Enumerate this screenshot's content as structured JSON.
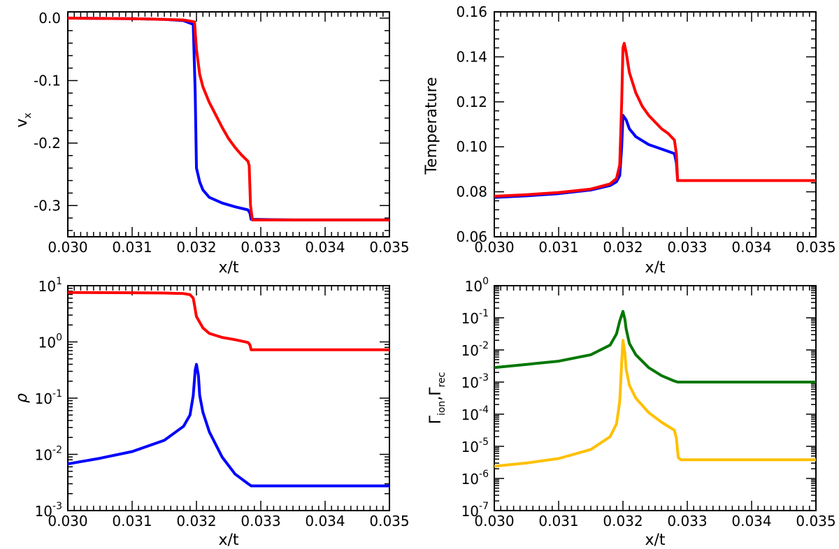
{
  "chart_data": [
    {
      "id": "vx",
      "type": "line",
      "xlabel": "x/t",
      "ylabel": "v",
      "ylabel_sub": "x",
      "xlim": [
        0.03,
        0.035
      ],
      "ylim": [
        -0.35,
        0.01
      ],
      "yscale": "linear",
      "xticks": [
        "0.030",
        "0.031",
        "0.032",
        "0.033",
        "0.034",
        "0.035"
      ],
      "yticks": [
        {
          "v": 0.0,
          "label": "0.0"
        },
        {
          "v": -0.1,
          "label": "-0.1"
        },
        {
          "v": -0.2,
          "label": "-0.2"
        },
        {
          "v": -0.3,
          "label": "-0.3"
        }
      ],
      "series": [
        {
          "name": "blue",
          "color": "#0000ff",
          "points": [
            [
              0.03,
              0.0
            ],
            [
              0.031,
              -0.001
            ],
            [
              0.0315,
              -0.002
            ],
            [
              0.0318,
              -0.004
            ],
            [
              0.03195,
              -0.01
            ],
            [
              0.03198,
              -0.12
            ],
            [
              0.032,
              -0.24
            ],
            [
              0.03205,
              -0.262
            ],
            [
              0.0321,
              -0.275
            ],
            [
              0.0322,
              -0.287
            ],
            [
              0.0324,
              -0.296
            ],
            [
              0.0326,
              -0.302
            ],
            [
              0.0328,
              -0.307
            ],
            [
              0.03283,
              -0.312
            ],
            [
              0.03285,
              -0.322
            ],
            [
              0.0335,
              -0.323
            ],
            [
              0.035,
              -0.323
            ]
          ]
        },
        {
          "name": "red",
          "color": "#ff0000",
          "points": [
            [
              0.03,
              0.0
            ],
            [
              0.031,
              -0.001
            ],
            [
              0.0315,
              -0.002
            ],
            [
              0.0318,
              -0.003
            ],
            [
              0.03197,
              -0.006
            ],
            [
              0.032,
              -0.05
            ],
            [
              0.03205,
              -0.09
            ],
            [
              0.0321,
              -0.11
            ],
            [
              0.0322,
              -0.135
            ],
            [
              0.0323,
              -0.155
            ],
            [
              0.0324,
              -0.175
            ],
            [
              0.0325,
              -0.193
            ],
            [
              0.0326,
              -0.207
            ],
            [
              0.0327,
              -0.219
            ],
            [
              0.0328,
              -0.229
            ],
            [
              0.03282,
              -0.236
            ],
            [
              0.03284,
              -0.3
            ],
            [
              0.03287,
              -0.323
            ],
            [
              0.035,
              -0.323
            ]
          ]
        }
      ]
    },
    {
      "id": "temperature",
      "type": "line",
      "xlabel": "x/t",
      "ylabel": "Temperature",
      "xlim": [
        0.03,
        0.035
      ],
      "ylim": [
        0.06,
        0.16
      ],
      "yscale": "linear",
      "xticks": [
        "0.030",
        "0.031",
        "0.032",
        "0.033",
        "0.034",
        "0.035"
      ],
      "yticks": [
        {
          "v": 0.06,
          "label": "0.06"
        },
        {
          "v": 0.08,
          "label": "0.08"
        },
        {
          "v": 0.1,
          "label": "0.10"
        },
        {
          "v": 0.12,
          "label": "0.12"
        },
        {
          "v": 0.14,
          "label": "0.14"
        },
        {
          "v": 0.16,
          "label": "0.16"
        }
      ],
      "series": [
        {
          "name": "blue",
          "color": "#0000ff",
          "points": [
            [
              0.03,
              0.0775
            ],
            [
              0.0305,
              0.0782
            ],
            [
              0.031,
              0.0792
            ],
            [
              0.0315,
              0.0808
            ],
            [
              0.0318,
              0.0828
            ],
            [
              0.0319,
              0.0845
            ],
            [
              0.03195,
              0.0872
            ],
            [
              0.03198,
              0.1
            ],
            [
              0.032,
              0.114
            ],
            [
              0.03205,
              0.112
            ],
            [
              0.0321,
              0.108
            ],
            [
              0.0322,
              0.1045
            ],
            [
              0.0324,
              0.101
            ],
            [
              0.0326,
              0.099
            ],
            [
              0.0328,
              0.097
            ],
            [
              0.03283,
              0.093
            ],
            [
              0.03285,
              0.085
            ],
            [
              0.035,
              0.085
            ]
          ]
        },
        {
          "name": "red",
          "color": "#ff0000",
          "points": [
            [
              0.03,
              0.078
            ],
            [
              0.0305,
              0.0787
            ],
            [
              0.031,
              0.0797
            ],
            [
              0.0315,
              0.0812
            ],
            [
              0.0318,
              0.0835
            ],
            [
              0.0319,
              0.086
            ],
            [
              0.03195,
              0.092
            ],
            [
              0.03198,
              0.12
            ],
            [
              0.032,
              0.144
            ],
            [
              0.03202,
              0.146
            ],
            [
              0.03205,
              0.142
            ],
            [
              0.0321,
              0.133
            ],
            [
              0.0322,
              0.124
            ],
            [
              0.0323,
              0.118
            ],
            [
              0.0324,
              0.114
            ],
            [
              0.0325,
              0.111
            ],
            [
              0.0326,
              0.108
            ],
            [
              0.0327,
              0.106
            ],
            [
              0.0328,
              0.103
            ],
            [
              0.03283,
              0.097
            ],
            [
              0.03285,
              0.085
            ],
            [
              0.035,
              0.085
            ]
          ]
        }
      ]
    },
    {
      "id": "rho",
      "type": "line",
      "xlabel": "x/t",
      "ylabel": "ρ",
      "xlim": [
        0.03,
        0.035
      ],
      "ylim": [
        -3,
        1
      ],
      "yscale": "log10",
      "xticks": [
        "0.030",
        "0.031",
        "0.032",
        "0.033",
        "0.034",
        "0.035"
      ],
      "yticks": [
        {
          "v": 1,
          "base": "10",
          "exp": "1"
        },
        {
          "v": 0,
          "base": "10",
          "exp": "0"
        },
        {
          "v": -1,
          "base": "10",
          "exp": "-1"
        },
        {
          "v": -2,
          "base": "10",
          "exp": "-2"
        },
        {
          "v": -3,
          "base": "10",
          "exp": "-3"
        }
      ],
      "series": [
        {
          "name": "red",
          "color": "#ff0000",
          "points": [
            [
              0.03,
              0.88
            ],
            [
              0.031,
              0.875
            ],
            [
              0.0315,
              0.87
            ],
            [
              0.0318,
              0.86
            ],
            [
              0.0319,
              0.84
            ],
            [
              0.03195,
              0.78
            ],
            [
              0.032,
              0.45
            ],
            [
              0.0321,
              0.25
            ],
            [
              0.0322,
              0.15
            ],
            [
              0.0324,
              0.08
            ],
            [
              0.0326,
              0.04
            ],
            [
              0.0328,
              -0.01
            ],
            [
              0.03283,
              -0.05
            ],
            [
              0.03285,
              -0.14
            ],
            [
              0.035,
              -0.14
            ]
          ]
        },
        {
          "name": "blue",
          "color": "#0000ff",
          "points": [
            [
              0.03,
              -2.17
            ],
            [
              0.0305,
              -2.07
            ],
            [
              0.031,
              -1.95
            ],
            [
              0.0315,
              -1.75
            ],
            [
              0.0318,
              -1.5
            ],
            [
              0.0319,
              -1.3
            ],
            [
              0.03195,
              -0.95
            ],
            [
              0.03198,
              -0.5
            ],
            [
              0.032,
              -0.4
            ],
            [
              0.03203,
              -0.6
            ],
            [
              0.03205,
              -0.95
            ],
            [
              0.0321,
              -1.25
            ],
            [
              0.0322,
              -1.6
            ],
            [
              0.0324,
              -2.05
            ],
            [
              0.0326,
              -2.35
            ],
            [
              0.0328,
              -2.52
            ],
            [
              0.03285,
              -2.56
            ],
            [
              0.035,
              -2.56
            ]
          ]
        }
      ]
    },
    {
      "id": "gamma",
      "type": "line",
      "xlabel": "x/t",
      "ylabel": "Γ",
      "ylabel_sub1": "ion",
      "ylabel_mid": ",Γ",
      "ylabel_sub2": "rec",
      "xlim": [
        0.03,
        0.035
      ],
      "ylim": [
        -7,
        0
      ],
      "yscale": "log10",
      "xticks": [
        "0.030",
        "0.031",
        "0.032",
        "0.033",
        "0.034",
        "0.035"
      ],
      "yticks": [
        {
          "v": 0,
          "base": "10",
          "exp": "0"
        },
        {
          "v": -1,
          "base": "10",
          "exp": "-1"
        },
        {
          "v": -2,
          "base": "10",
          "exp": "-2"
        },
        {
          "v": -3,
          "base": "10",
          "exp": "-3"
        },
        {
          "v": -4,
          "base": "10",
          "exp": "-4"
        },
        {
          "v": -5,
          "base": "10",
          "exp": "-5"
        },
        {
          "v": -6,
          "base": "10",
          "exp": "-6"
        },
        {
          "v": -7,
          "base": "10",
          "exp": "-7"
        }
      ],
      "series": [
        {
          "name": "green",
          "color": "#007700",
          "points": [
            [
              0.03,
              -2.55
            ],
            [
              0.0305,
              -2.45
            ],
            [
              0.031,
              -2.35
            ],
            [
              0.0315,
              -2.15
            ],
            [
              0.0318,
              -1.85
            ],
            [
              0.0319,
              -1.5
            ],
            [
              0.03195,
              -1.1
            ],
            [
              0.032,
              -0.8
            ],
            [
              0.03203,
              -1.05
            ],
            [
              0.03205,
              -1.35
            ],
            [
              0.0321,
              -1.8
            ],
            [
              0.0322,
              -2.15
            ],
            [
              0.0324,
              -2.55
            ],
            [
              0.0326,
              -2.8
            ],
            [
              0.0328,
              -2.97
            ],
            [
              0.03285,
              -3.0
            ],
            [
              0.035,
              -3.0
            ]
          ]
        },
        {
          "name": "yellow",
          "color": "#ffc000",
          "points": [
            [
              0.03,
              -5.62
            ],
            [
              0.0305,
              -5.52
            ],
            [
              0.031,
              -5.38
            ],
            [
              0.0315,
              -5.1
            ],
            [
              0.0318,
              -4.7
            ],
            [
              0.0319,
              -4.3
            ],
            [
              0.03195,
              -3.6
            ],
            [
              0.03198,
              -2.4
            ],
            [
              0.032,
              -1.7
            ],
            [
              0.03203,
              -2.1
            ],
            [
              0.03205,
              -2.6
            ],
            [
              0.0321,
              -3.1
            ],
            [
              0.0322,
              -3.5
            ],
            [
              0.0324,
              -3.95
            ],
            [
              0.0326,
              -4.25
            ],
            [
              0.0328,
              -4.5
            ],
            [
              0.03283,
              -4.75
            ],
            [
              0.03286,
              -5.35
            ],
            [
              0.0329,
              -5.42
            ],
            [
              0.035,
              -5.42
            ]
          ]
        }
      ]
    }
  ]
}
